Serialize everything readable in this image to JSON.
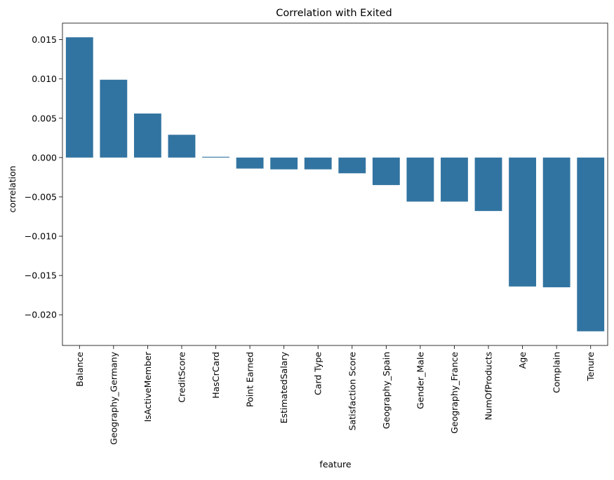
{
  "chart_data": {
    "type": "bar",
    "title": "Correlation with Exited",
    "xlabel": "feature",
    "ylabel": "correlation",
    "categories": [
      "Balance",
      "Geography_Germany",
      "IsActiveMember",
      "CreditScore",
      "HasCrCard",
      "Point Earned",
      "EstimatedSalary",
      "Card Type",
      "Satisfaction Score",
      "Geography_Spain",
      "Gender_Male",
      "Geography_France",
      "NumOfProducts",
      "Age",
      "Complain",
      "Tenure"
    ],
    "values": [
      0.0153,
      0.0099,
      0.0056,
      0.0029,
      0.0001,
      -0.0014,
      -0.0015,
      -0.0015,
      -0.002,
      -0.0035,
      -0.0056,
      -0.0056,
      -0.0068,
      -0.0164,
      -0.0165,
      -0.0221
    ],
    "ylim": [
      -0.0239,
      0.0171
    ],
    "yticks": [
      0.015,
      0.01,
      0.005,
      0.0,
      -0.005,
      -0.01,
      -0.015,
      -0.02
    ],
    "ytick_labels": [
      "0.015",
      "0.010",
      "0.005",
      "0.000",
      "−0.005",
      "−0.010",
      "−0.015",
      "−0.020"
    ],
    "bar_color": "#3274a1",
    "grid": false,
    "legend": "none"
  }
}
